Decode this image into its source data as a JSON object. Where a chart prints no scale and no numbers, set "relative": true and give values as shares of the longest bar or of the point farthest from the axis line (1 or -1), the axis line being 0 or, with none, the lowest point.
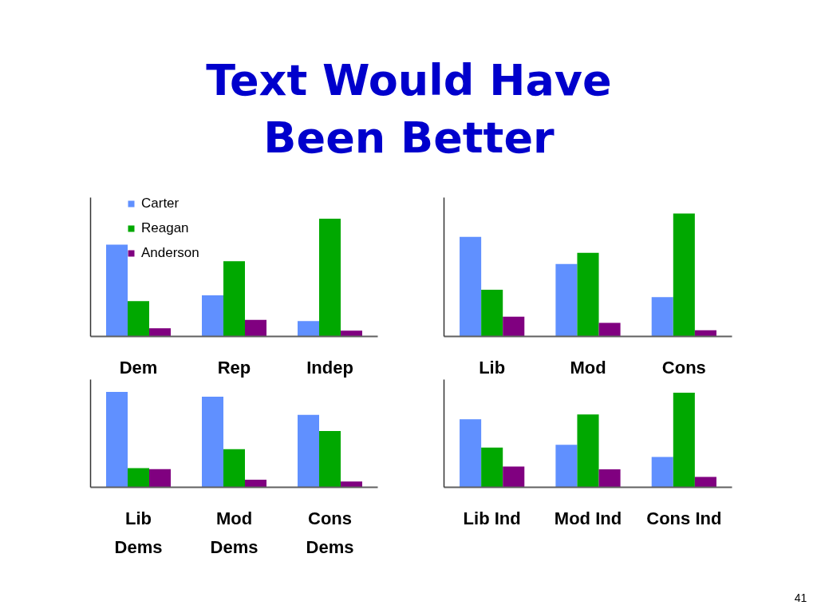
{
  "chart_data": [
    {
      "type": "bar",
      "title": "Text Would Have\nBeen Better",
      "annotations": [
        "41"
      ],
      "relative": true,
      "legend": "top left",
      "categories": [
        "Dem",
        "Rep",
        "Indep"
      ],
      "series": [
        {
          "name": "Carter",
          "color": "#6090ff",
          "values": [
            0.78,
            0.35,
            0.13
          ]
        },
        {
          "name": "Reagan",
          "color": "#00a800",
          "values": [
            0.3,
            0.64,
            1.0
          ]
        },
        {
          "name": "Anderson",
          "color": "#800080",
          "values": [
            0.07,
            0.14,
            0.05
          ]
        }
      ]
    },
    {
      "type": "bar",
      "relative": true,
      "categories": [
        "Lib",
        "Mod",
        "Cons"
      ],
      "series": [
        {
          "color": "#6090ff",
          "values": [
            0.81,
            0.59,
            0.32
          ]
        },
        {
          "color": "#00a800",
          "values": [
            0.38,
            0.68,
            1.0
          ]
        },
        {
          "color": "#800080",
          "values": [
            0.16,
            0.11,
            0.05
          ]
        }
      ]
    },
    {
      "type": "bar",
      "relative": true,
      "categories": [
        "Lib\nDems",
        "Mod\nDems",
        "Cons\nDems"
      ],
      "series": [
        {
          "color": "#6090ff",
          "values": [
            1.0,
            0.95,
            0.76
          ]
        },
        {
          "color": "#00a800",
          "values": [
            0.2,
            0.4,
            0.59
          ]
        },
        {
          "color": "#800080",
          "values": [
            0.19,
            0.08,
            0.06
          ]
        }
      ]
    },
    {
      "type": "bar",
      "relative": true,
      "categories": [
        "Lib Ind",
        "Mod Ind",
        "Cons Ind"
      ],
      "series": [
        {
          "color": "#6090ff",
          "values": [
            0.72,
            0.45,
            0.32
          ]
        },
        {
          "color": "#00a800",
          "values": [
            0.42,
            0.77,
            1.0
          ]
        },
        {
          "color": "#800080",
          "values": [
            0.22,
            0.19,
            0.11
          ]
        }
      ]
    }
  ]
}
